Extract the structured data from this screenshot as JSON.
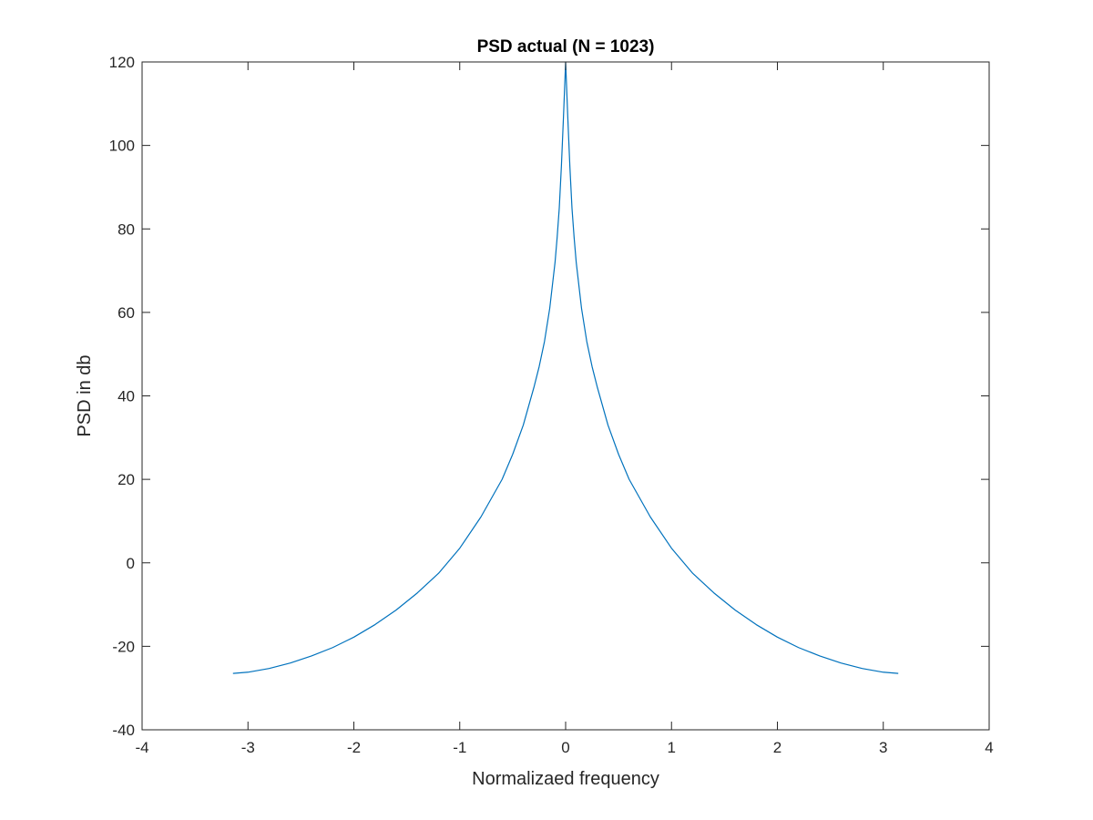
{
  "chart_data": {
    "type": "line",
    "title": "PSD actual (N = 1023)",
    "xlabel": "Normalizaed frequency",
    "ylabel": "PSD in db",
    "xlim": [
      -4,
      4
    ],
    "ylim": [
      -40,
      120
    ],
    "xticks": [
      -4,
      -3,
      -2,
      -1,
      0,
      1,
      2,
      3,
      4
    ],
    "yticks": [
      -40,
      -20,
      0,
      20,
      40,
      60,
      80,
      100,
      120
    ],
    "grid": false,
    "box": true,
    "series": [
      {
        "color": "#0072bd",
        "x": [
          -3.1416,
          -3.0,
          -2.8,
          -2.6,
          -2.4,
          -2.2,
          -2.0,
          -1.8,
          -1.6,
          -1.4,
          -1.2,
          -1.0,
          -0.8,
          -0.6,
          -0.5,
          -0.4,
          -0.3,
          -0.25,
          -0.2,
          -0.15,
          -0.1,
          -0.08,
          -0.06,
          -0.04,
          -0.02,
          0.0,
          0.02,
          0.04,
          0.06,
          0.08,
          0.1,
          0.15,
          0.2,
          0.25,
          0.3,
          0.4,
          0.5,
          0.6,
          0.8,
          1.0,
          1.2,
          1.4,
          1.6,
          1.8,
          2.0,
          2.2,
          2.4,
          2.6,
          2.8,
          3.0,
          3.1416
        ],
        "y": [
          -26.5,
          -26.2,
          -25.3,
          -24.0,
          -22.3,
          -20.3,
          -17.8,
          -14.8,
          -11.3,
          -7.2,
          -2.5,
          3.5,
          11.0,
          20.0,
          26.0,
          33.0,
          42.0,
          47.0,
          53.0,
          61.0,
          72.0,
          78.0,
          85.0,
          95.0,
          107.0,
          120.0,
          107.0,
          95.0,
          85.0,
          78.0,
          72.0,
          61.0,
          53.0,
          47.0,
          42.0,
          33.0,
          26.0,
          20.0,
          11.0,
          3.5,
          -2.5,
          -7.2,
          -11.3,
          -14.8,
          -17.8,
          -20.3,
          -22.3,
          -24.0,
          -25.3,
          -26.2,
          -26.5
        ]
      }
    ]
  }
}
